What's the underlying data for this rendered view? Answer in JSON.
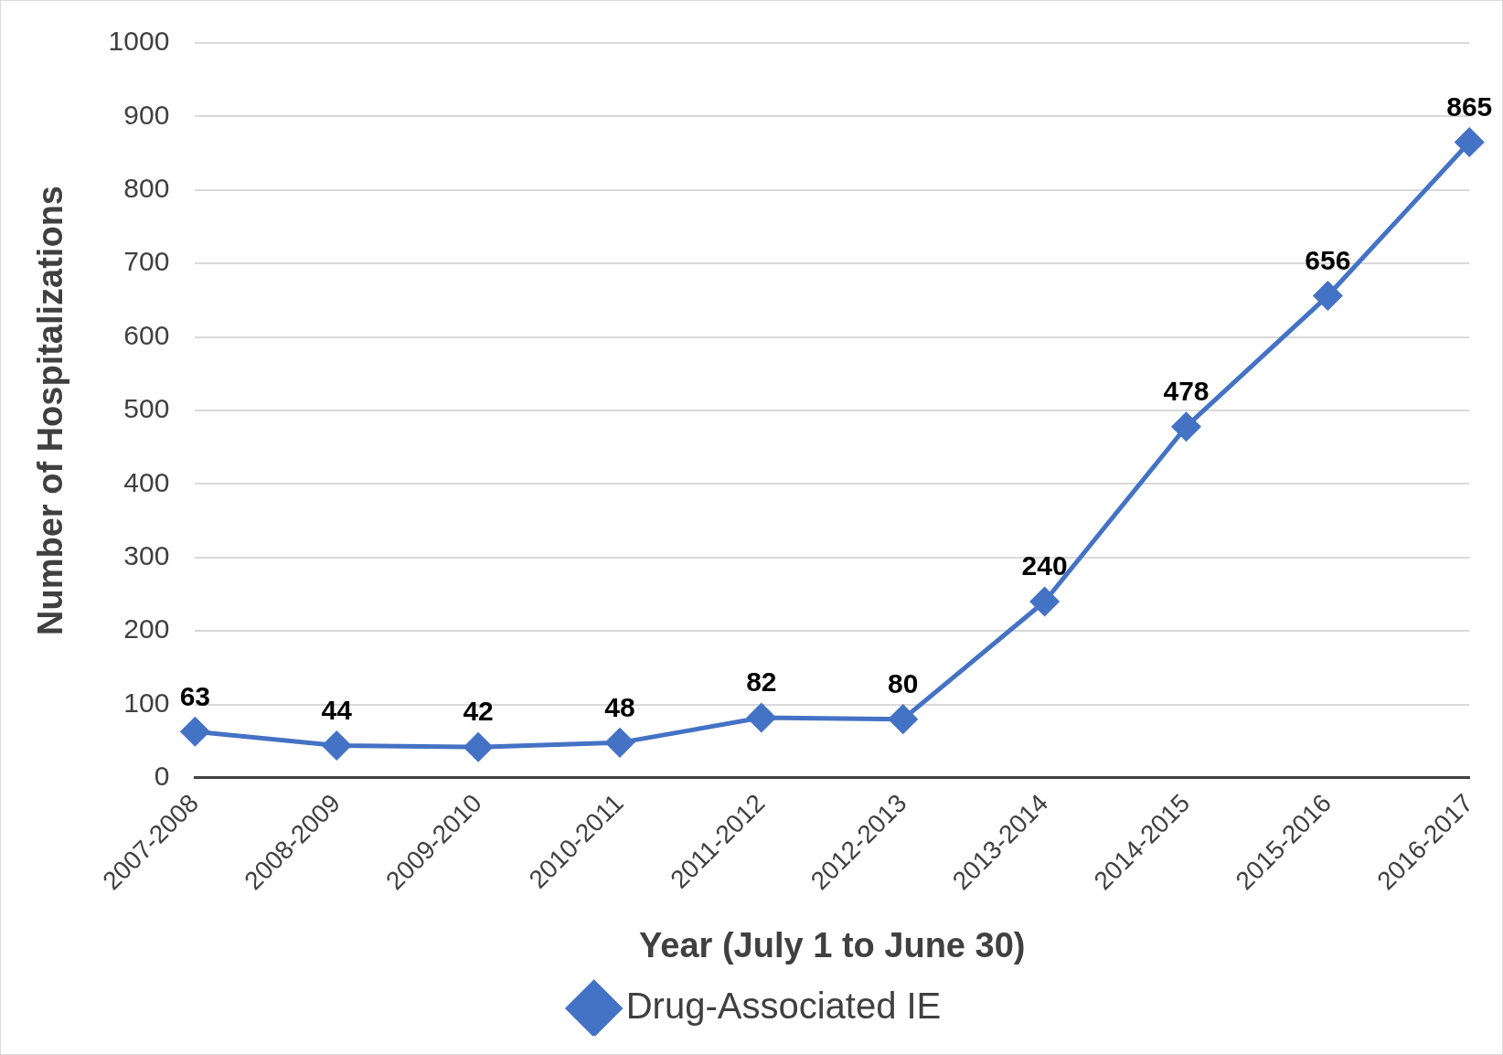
{
  "chart_data": {
    "type": "line",
    "xlabel": "Year (July 1 to June 30)",
    "ylabel": "Number of Hospitalizations",
    "categories": [
      "2007-2008",
      "2008-2009",
      "2009-2010",
      "2010-2011",
      "2011-2012",
      "2012-2013",
      "2013-2014",
      "2014-2015",
      "2015-2016",
      "2016-2017"
    ],
    "series": [
      {
        "name": "Drug-Associated IE",
        "color": "#4472c4",
        "values": [
          63,
          44,
          42,
          48,
          82,
          80,
          240,
          478,
          656,
          865
        ]
      }
    ],
    "ylim": [
      0,
      1000
    ],
    "yticks": [
      0,
      100,
      200,
      300,
      400,
      500,
      600,
      700,
      800,
      900,
      1000
    ],
    "grid": "y",
    "legend": "bottom",
    "marker": "diamond",
    "line_style": "solid",
    "data_labels": true
  }
}
